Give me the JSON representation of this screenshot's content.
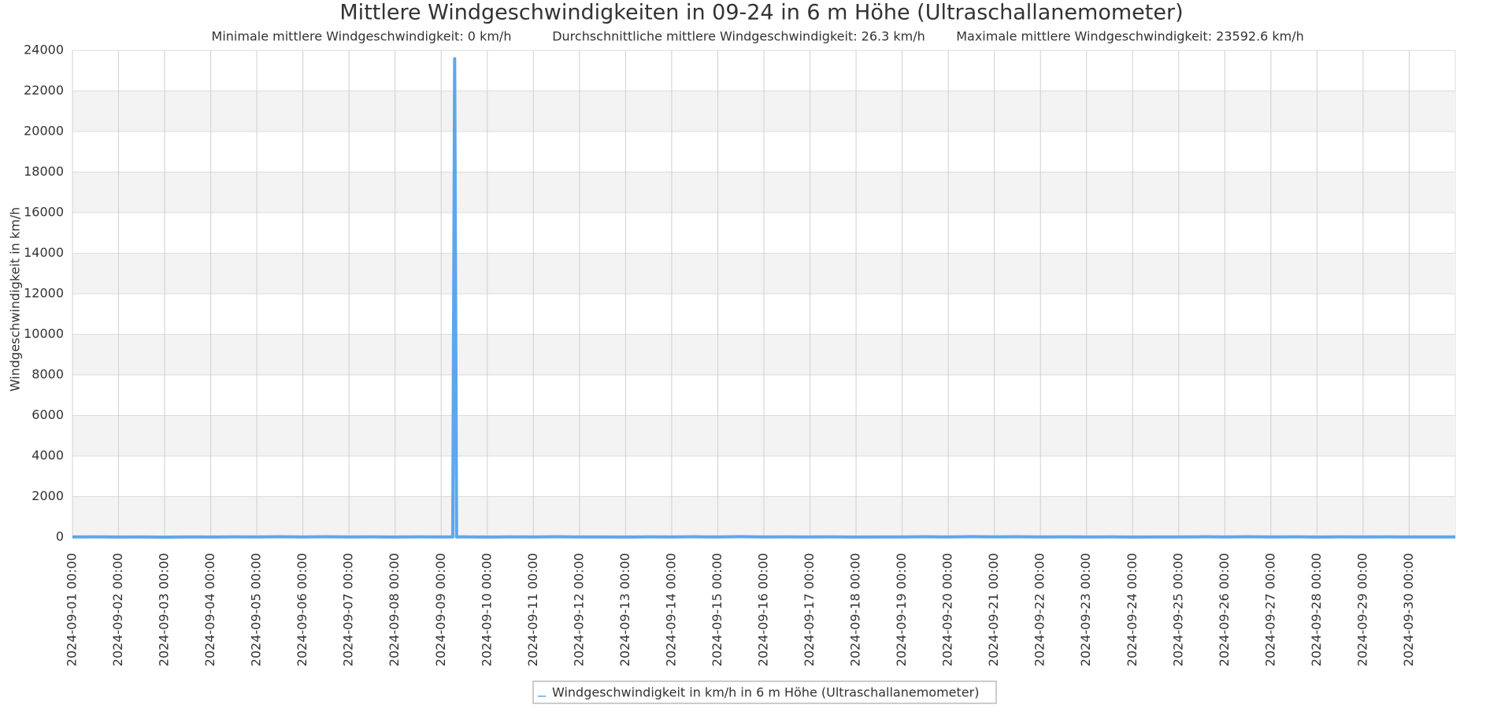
{
  "chart_data": {
    "type": "line",
    "title": "Mittlere Windgeschwindigkeiten in 09-24 in 6 m Höhe (Ultraschallanemometer)",
    "subtitle": [
      "Minimale mittlere Windgeschwindigkeit: 0 km/h",
      "Durchschnittliche mittlere Windgeschwindigkeit: 26.3 km/h",
      "Maximale mittlere Windgeschwindigkeit: 23592.6 km/h"
    ],
    "y_label": "Windgeschwindigkeit in km/h",
    "x": [
      "2024-09-01 00:00",
      "2024-09-01 12:00",
      "2024-09-02 00:00",
      "2024-09-02 12:00",
      "2024-09-03 00:00",
      "2024-09-03 12:00",
      "2024-09-04 00:00",
      "2024-09-04 12:00",
      "2024-09-05 00:00",
      "2024-09-05 12:00",
      "2024-09-06 00:00",
      "2024-09-06 12:00",
      "2024-09-07 00:00",
      "2024-09-07 12:00",
      "2024-09-08 00:00",
      "2024-09-08 12:00",
      "2024-09-09 00:00",
      "2024-09-09 06:00",
      "2024-09-09 07:00",
      "2024-09-09 08:00",
      "2024-09-09 12:00",
      "2024-09-10 00:00",
      "2024-09-10 12:00",
      "2024-09-11 00:00",
      "2024-09-11 12:00",
      "2024-09-12 00:00",
      "2024-09-12 12:00",
      "2024-09-13 00:00",
      "2024-09-13 12:00",
      "2024-09-14 00:00",
      "2024-09-14 12:00",
      "2024-09-15 00:00",
      "2024-09-15 12:00",
      "2024-09-16 00:00",
      "2024-09-16 12:00",
      "2024-09-17 00:00",
      "2024-09-17 12:00",
      "2024-09-18 00:00",
      "2024-09-18 12:00",
      "2024-09-19 00:00",
      "2024-09-19 12:00",
      "2024-09-20 00:00",
      "2024-09-20 12:00",
      "2024-09-21 00:00",
      "2024-09-21 12:00",
      "2024-09-22 00:00",
      "2024-09-22 12:00",
      "2024-09-23 00:00",
      "2024-09-23 12:00",
      "2024-09-24 00:00",
      "2024-09-24 12:00",
      "2024-09-25 00:00",
      "2024-09-25 12:00",
      "2024-09-26 00:00",
      "2024-09-26 12:00",
      "2024-09-27 00:00",
      "2024-09-27 12:00",
      "2024-09-28 00:00",
      "2024-09-28 12:00",
      "2024-09-29 00:00",
      "2024-09-29 12:00",
      "2024-09-30 00:00",
      "2024-09-30 12:00",
      "2024-10-01 00:00"
    ],
    "series": [
      {
        "name": "Windgeschwindigkeit in km/h in 6 m Höhe (Ultraschallanemometer)",
        "color": "#5ea6ee",
        "values": [
          8,
          14,
          6,
          12,
          0,
          10,
          7,
          15,
          9,
          18,
          11,
          20,
          8,
          13,
          6,
          16,
          9,
          12,
          23592.6,
          11,
          14,
          7,
          15,
          10,
          19,
          8,
          12,
          6,
          14,
          9,
          17,
          11,
          22,
          10,
          13,
          8,
          16,
          7,
          12,
          9,
          18,
          11,
          24,
          13,
          20,
          10,
          15,
          8,
          14,
          6,
          12,
          9,
          17,
          11,
          21,
          10,
          16,
          7,
          13,
          9,
          15,
          8,
          12,
          10
        ]
      }
    ],
    "xlim": [
      "2024-09-01 00:00",
      "2024-10-01 00:00"
    ],
    "xticks": [
      "2024-09-01 00:00",
      "2024-09-02 00:00",
      "2024-09-03 00:00",
      "2024-09-04 00:00",
      "2024-09-05 00:00",
      "2024-09-06 00:00",
      "2024-09-07 00:00",
      "2024-09-08 00:00",
      "2024-09-09 00:00",
      "2024-09-10 00:00",
      "2024-09-11 00:00",
      "2024-09-12 00:00",
      "2024-09-13 00:00",
      "2024-09-14 00:00",
      "2024-09-15 00:00",
      "2024-09-16 00:00",
      "2024-09-17 00:00",
      "2024-09-18 00:00",
      "2024-09-19 00:00",
      "2024-09-20 00:00",
      "2024-09-21 00:00",
      "2024-09-22 00:00",
      "2024-09-23 00:00",
      "2024-09-24 00:00",
      "2024-09-25 00:00",
      "2024-09-26 00:00",
      "2024-09-27 00:00",
      "2024-09-28 00:00",
      "2024-09-29 00:00",
      "2024-09-30 00:00"
    ],
    "ylim": [
      0,
      24000
    ],
    "yticks": [
      0,
      2000,
      4000,
      6000,
      8000,
      10000,
      12000,
      14000,
      16000,
      18000,
      20000,
      22000,
      24000
    ],
    "grid": true,
    "grid_bands": true,
    "legend": "bottom"
  }
}
